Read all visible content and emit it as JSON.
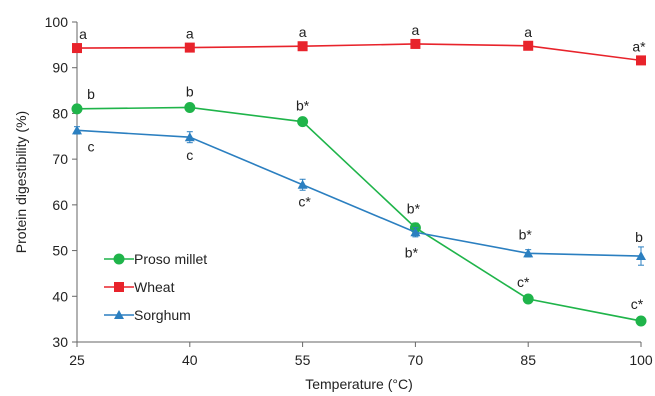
{
  "chart_data": {
    "type": "line",
    "xlabel": "Temperature (°C)",
    "ylabel": "Protein digestibility (%)",
    "x": [
      25,
      40,
      55,
      70,
      85,
      100
    ],
    "xlim": [
      25,
      100
    ],
    "ylim": [
      30,
      100
    ],
    "yticks": [
      30,
      40,
      50,
      60,
      70,
      80,
      90,
      100
    ],
    "grid": false,
    "legend_position": "bottom-left",
    "series": [
      {
        "name": "Wheat",
        "color": "#e8232b",
        "marker": "square",
        "values": [
          94.3,
          94.4,
          94.7,
          95.2,
          94.8,
          91.6
        ],
        "error": [
          0.8,
          0.6,
          0.6,
          0.7,
          0.6,
          0.8
        ],
        "labels": [
          "a",
          "a",
          "a",
          "a",
          "a",
          "a*"
        ]
      },
      {
        "name": "Proso millet",
        "color": "#1fb44a",
        "marker": "circle",
        "values": [
          81.0,
          81.3,
          78.2,
          55.0,
          39.4,
          34.6
        ],
        "error": [
          0.7,
          0.6,
          0.6,
          1.0,
          0.6,
          0.6
        ],
        "labels": [
          "b",
          "b",
          "b*",
          "b*",
          "c*",
          "c*"
        ]
      },
      {
        "name": "Sorghum",
        "color": "#2b7fc0",
        "marker": "triangle",
        "values": [
          76.3,
          74.8,
          64.4,
          54.0,
          49.4,
          48.8
        ],
        "error": [
          0.8,
          1.2,
          1.2,
          1.0,
          0.8,
          2.0
        ],
        "labels": [
          "c",
          "c",
          "c*",
          "b*",
          "b*",
          "b"
        ]
      }
    ],
    "legend_order": [
      "Proso millet",
      "Wheat",
      "Sorghum"
    ]
  }
}
